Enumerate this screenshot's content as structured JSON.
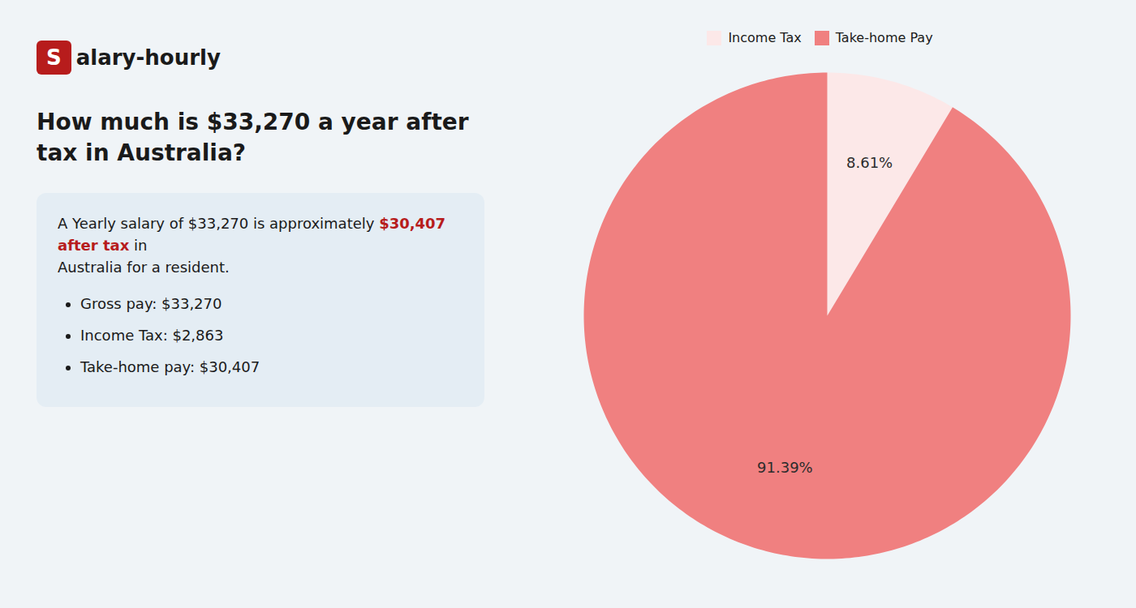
{
  "chart_data": {
    "type": "pie",
    "title": "How much is $33,270 a year after tax in Australia?",
    "logo": [
      {
        "text": "S",
        "color": "#b71c1c"
      },
      {
        "text": "alary-hourly"
      }
    ],
    "annotations": [
      [
        {
          "text": "A Yearly salary of $33,270 is approximately "
        },
        {
          "text": "$30,407 after tax",
          "color": "#b71c1c"
        },
        {
          "text": " in"
        }
      ],
      [
        {
          "text": "Australia for a resident."
        }
      ]
    ],
    "bullets": [
      "Gross pay: $33,270",
      "Income Tax: $2,863",
      "Take-home pay: $30,407"
    ],
    "categories": [
      "Income Tax",
      "Take-home Pay"
    ],
    "values": [
      8.61,
      91.39
    ],
    "value_labels": [
      "8.61%",
      "91.39%"
    ],
    "colors": [
      "#fce8e8",
      "#f08080"
    ],
    "data_labels": true,
    "legend": "top"
  }
}
